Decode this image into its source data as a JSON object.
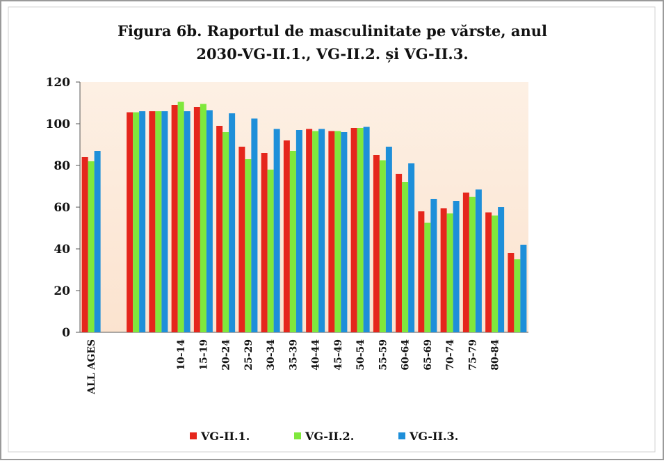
{
  "chart_data": {
    "type": "bar",
    "title": [
      "Figura 6b. Raportul de masculinitate pe vărste, anul",
      "2030-VG-II.1., VG-II.2. și VG-II.3."
    ],
    "categories": [
      "ALL AGES",
      null,
      null,
      null,
      "10-14",
      "15-19",
      "20-24",
      "25-29",
      "30-34",
      "35-39",
      "40-44",
      "45-49",
      "50-54",
      "55-59",
      "60-64",
      "65-69",
      "70-74",
      "75-79",
      "80-84",
      null
    ],
    "series": [
      {
        "name": "VG-II.1.",
        "color": "#e5261c",
        "values": [
          84,
          null,
          105.5,
          106,
          109,
          108,
          99,
          89,
          86,
          92,
          97.5,
          96.5,
          98,
          85,
          76,
          58,
          59.5,
          67,
          57.5,
          38
        ]
      },
      {
        "name": "VG-II.2.",
        "color": "#7fe83c",
        "values": [
          82,
          null,
          105.5,
          106,
          110.5,
          109.5,
          96,
          83,
          78,
          87,
          96.5,
          96.5,
          98,
          82.5,
          72,
          52.5,
          57,
          65,
          56,
          35
        ]
      },
      {
        "name": "VG-II.3.",
        "color": "#1e8fd9",
        "values": [
          87,
          null,
          106,
          106,
          106,
          106.5,
          105,
          102.5,
          97.5,
          97,
          97.5,
          96,
          98.5,
          89,
          81,
          64,
          63,
          68.5,
          60,
          42
        ]
      }
    ],
    "ylim": [
      0,
      120
    ],
    "yticks": [
      0,
      20,
      40,
      60,
      80,
      100,
      120
    ],
    "grid": false,
    "legend": "bottom"
  }
}
